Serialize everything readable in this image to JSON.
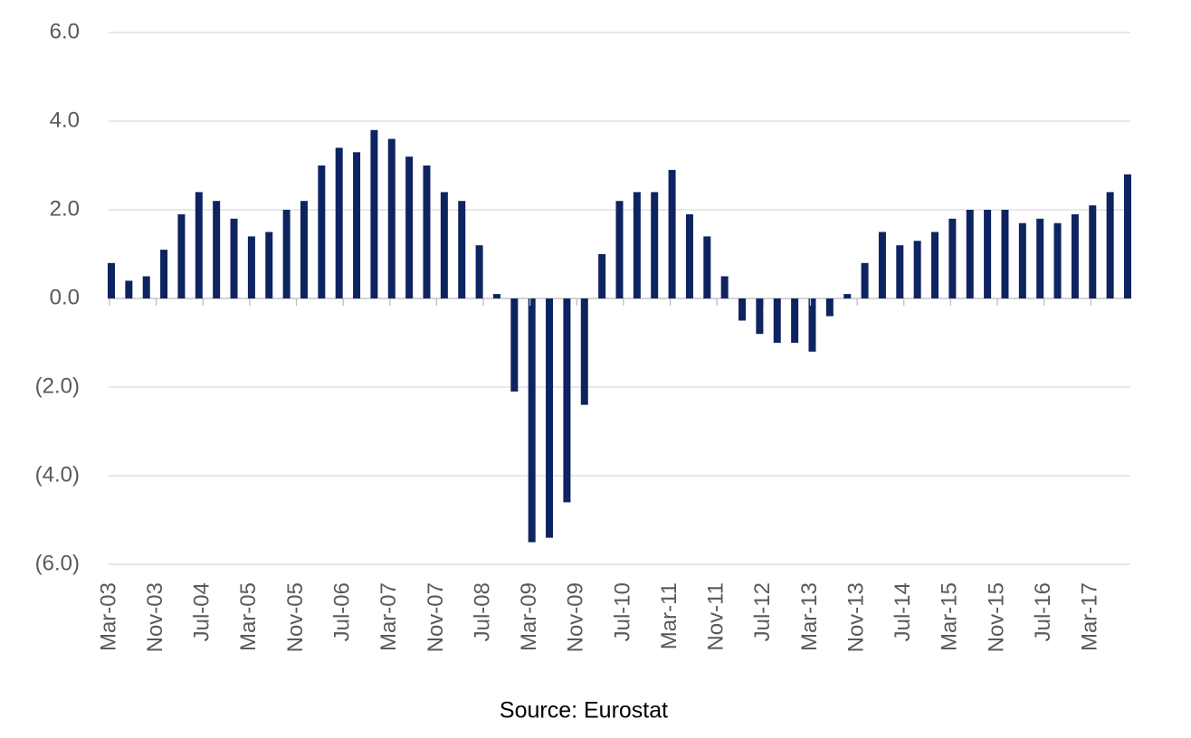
{
  "chart_data": {
    "type": "bar",
    "x": [
      "2003-03",
      "2003-06",
      "2003-09",
      "2003-12",
      "2004-03",
      "2004-06",
      "2004-09",
      "2004-12",
      "2005-03",
      "2005-06",
      "2005-09",
      "2005-12",
      "2006-03",
      "2006-06",
      "2006-09",
      "2006-12",
      "2007-03",
      "2007-06",
      "2007-09",
      "2007-12",
      "2008-03",
      "2008-06",
      "2008-09",
      "2008-12",
      "2009-03",
      "2009-06",
      "2009-09",
      "2009-12",
      "2010-03",
      "2010-06",
      "2010-09",
      "2010-12",
      "2011-03",
      "2011-06",
      "2011-09",
      "2011-12",
      "2012-03",
      "2012-06",
      "2012-09",
      "2012-12",
      "2013-03",
      "2013-06",
      "2013-09",
      "2013-12",
      "2014-03",
      "2014-06",
      "2014-09",
      "2014-12",
      "2015-03",
      "2015-06",
      "2015-09",
      "2015-12",
      "2016-03",
      "2016-06",
      "2016-09",
      "2016-12",
      "2017-03",
      "2017-06",
      "2017-09"
    ],
    "values": [
      0.8,
      0.4,
      0.5,
      1.1,
      1.9,
      2.4,
      2.2,
      1.8,
      1.4,
      1.5,
      2.0,
      2.2,
      3.0,
      3.4,
      3.3,
      3.8,
      3.6,
      3.2,
      3.0,
      2.4,
      2.2,
      1.2,
      0.1,
      -2.1,
      -5.5,
      -5.4,
      -4.6,
      -2.4,
      1.0,
      2.2,
      2.4,
      2.4,
      2.9,
      1.9,
      1.4,
      0.5,
      -0.5,
      -0.8,
      -1.0,
      -1.0,
      -1.2,
      -0.4,
      0.1,
      0.8,
      1.5,
      1.2,
      1.3,
      1.5,
      1.8,
      2.0,
      2.0,
      2.0,
      1.7,
      1.8,
      1.7,
      1.9,
      2.1,
      2.4,
      2.8
    ],
    "color": "#0d2461",
    "xlim": [
      "2003-03",
      "2017-09"
    ],
    "xticks": [
      {
        "value": "2003-03",
        "label": "Mar-03"
      },
      {
        "value": "2003-11",
        "label": "Nov-03"
      },
      {
        "value": "2004-07",
        "label": "Jul-04"
      },
      {
        "value": "2005-03",
        "label": "Mar-05"
      },
      {
        "value": "2005-11",
        "label": "Nov-05"
      },
      {
        "value": "2006-07",
        "label": "Jul-06"
      },
      {
        "value": "2007-03",
        "label": "Mar-07"
      },
      {
        "value": "2007-11",
        "label": "Nov-07"
      },
      {
        "value": "2008-07",
        "label": "Jul-08"
      },
      {
        "value": "2009-03",
        "label": "Mar-09"
      },
      {
        "value": "2009-11",
        "label": "Nov-09"
      },
      {
        "value": "2010-07",
        "label": "Jul-10"
      },
      {
        "value": "2011-03",
        "label": "Mar-11"
      },
      {
        "value": "2011-11",
        "label": "Nov-11"
      },
      {
        "value": "2012-07",
        "label": "Jul-12"
      },
      {
        "value": "2013-03",
        "label": "Mar-13"
      },
      {
        "value": "2013-11",
        "label": "Nov-13"
      },
      {
        "value": "2014-07",
        "label": "Jul-14"
      },
      {
        "value": "2015-03",
        "label": "Mar-15"
      },
      {
        "value": "2015-11",
        "label": "Nov-15"
      },
      {
        "value": "2016-07",
        "label": "Jul-16"
      },
      {
        "value": "2017-03",
        "label": "Mar-17"
      }
    ],
    "ylim": [
      -6,
      6
    ],
    "yticks": [
      {
        "value": 6,
        "label": "6.0"
      },
      {
        "value": 4,
        "label": "4.0"
      },
      {
        "value": 2,
        "label": "2.0"
      },
      {
        "value": 0,
        "label": "0.0"
      },
      {
        "value": -2,
        "label": "(2.0)"
      },
      {
        "value": -4,
        "label": "(4.0)"
      },
      {
        "value": -6,
        "label": "(6.0)"
      }
    ],
    "grid": true,
    "source": "Source: Eurostat"
  }
}
